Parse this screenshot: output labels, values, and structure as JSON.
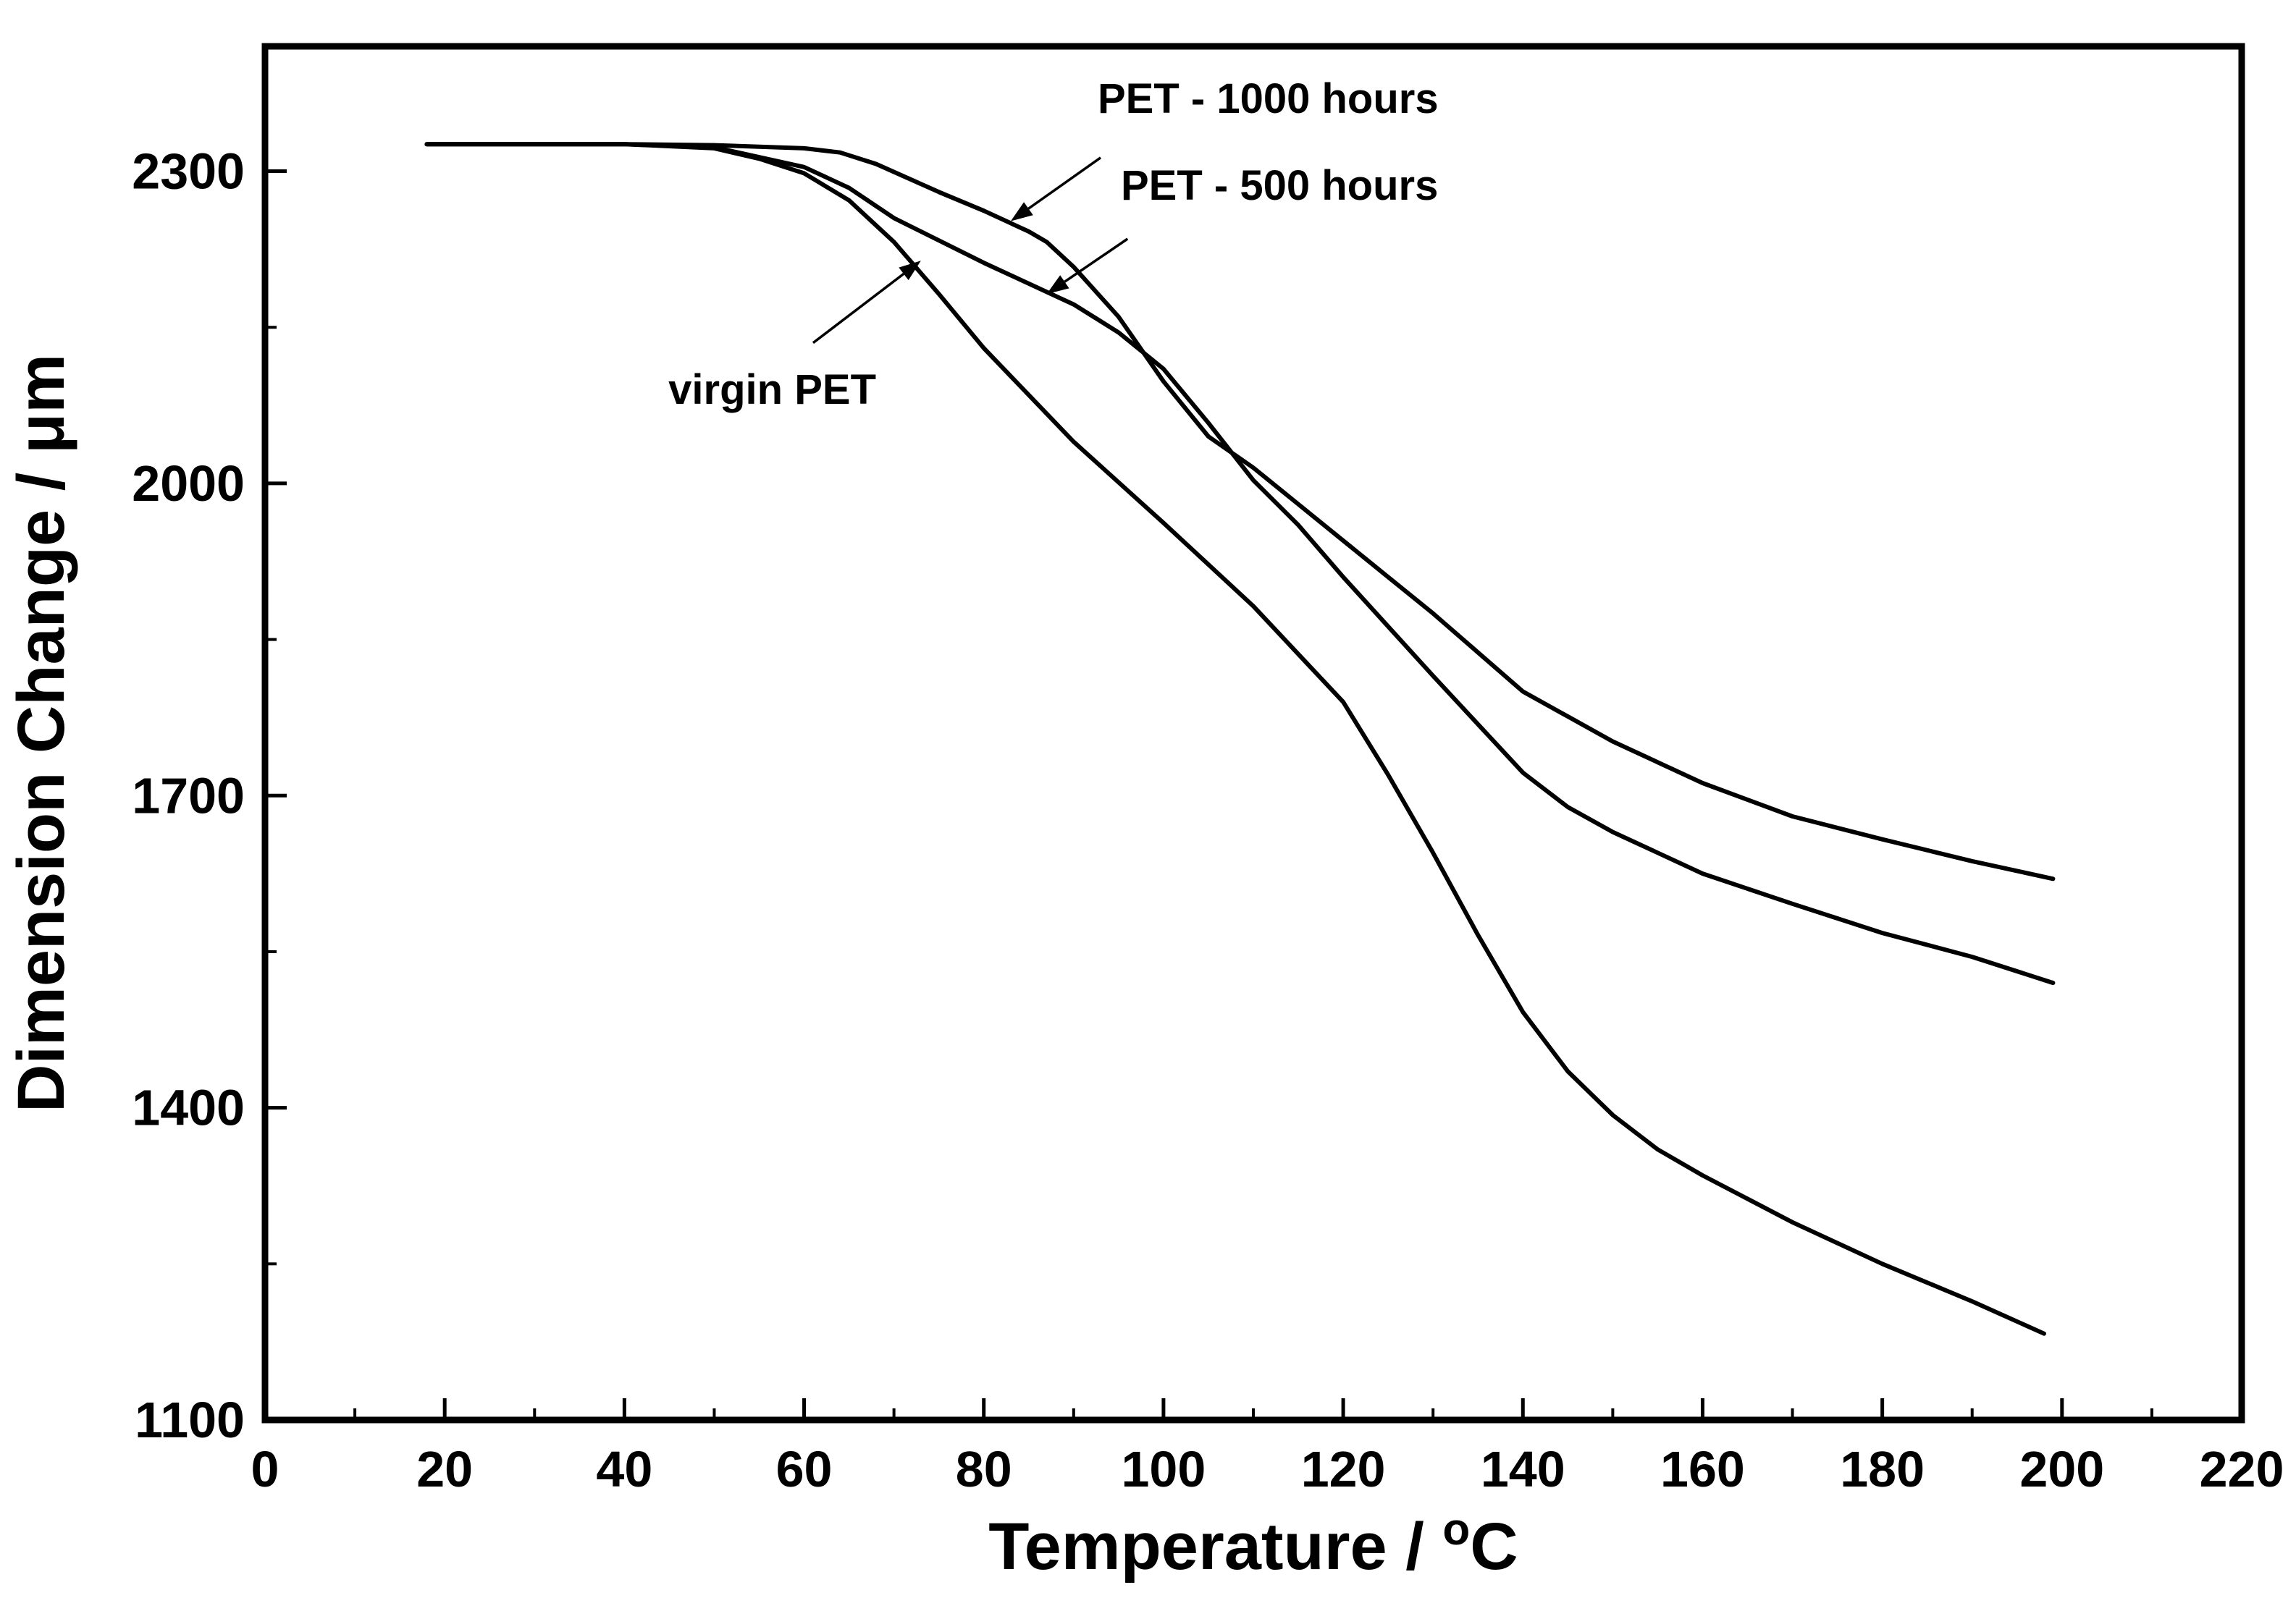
{
  "chart_data": {
    "type": "line",
    "title": "",
    "xlabel": "Temperature / ",
    "xlabel_sup": "o",
    "xlabel_unit": "C",
    "ylabel": "Dimension Change / μm",
    "xlim": [
      0,
      220
    ],
    "ylim": [
      1100,
      2420
    ],
    "x_ticks": [
      0,
      20,
      40,
      60,
      80,
      100,
      120,
      140,
      160,
      180,
      200,
      220
    ],
    "y_ticks": [
      1100,
      1400,
      1700,
      2000,
      2300
    ],
    "grid": false,
    "series": [
      {
        "name": "virgin PET",
        "x": [
          18,
          40,
          50,
          55,
          60,
          65,
          70,
          75,
          80,
          90,
          100,
          110,
          120,
          125,
          130,
          135,
          140,
          145,
          150,
          155,
          160,
          170,
          180,
          190,
          198
        ],
        "y": [
          2326,
          2326,
          2322,
          2312,
          2298,
          2272,
          2232,
          2182,
          2130,
          2040,
          1962,
          1882,
          1790,
          1720,
          1645,
          1566,
          1492,
          1435,
          1393,
          1360,
          1335,
          1290,
          1250,
          1214,
          1183
        ]
      },
      {
        "name": "PET - 500 hours",
        "x": [
          18,
          40,
          50,
          60,
          65,
          70,
          80,
          90,
          95,
          100,
          105,
          110,
          115,
          120,
          130,
          140,
          145,
          150,
          160,
          170,
          180,
          190,
          199
        ],
        "y": [
          2326,
          2326,
          2323,
          2304,
          2284,
          2255,
          2212,
          2172,
          2145,
          2110,
          2058,
          2003,
          1960,
          1910,
          1815,
          1722,
          1689,
          1665,
          1625,
          1596,
          1568,
          1545,
          1520
        ]
      },
      {
        "name": "PET - 1000 hours",
        "x": [
          18,
          40,
          50,
          60,
          64,
          68,
          75,
          80,
          85,
          87,
          90,
          95,
          100,
          105,
          110,
          120,
          130,
          140,
          150,
          160,
          170,
          180,
          190,
          199
        ],
        "y": [
          2326,
          2326,
          2325,
          2322,
          2318,
          2307,
          2280,
          2262,
          2242,
          2232,
          2208,
          2160,
          2098,
          2045,
          2015,
          1945,
          1875,
          1800,
          1752,
          1712,
          1680,
          1658,
          1637,
          1620
        ]
      }
    ],
    "annotations": [
      {
        "text": "PET - 1000 hours",
        "target_x": 83,
        "target_y": 2252,
        "label_x": 93,
        "label_y": 2313
      },
      {
        "text": "PET - 500 hours",
        "target_x": 87,
        "target_y": 2182,
        "label_x": 96,
        "label_y": 2235
      },
      {
        "text": "virgin PET",
        "target_x": 73,
        "target_y": 2214,
        "label_x": 61,
        "label_y": 2135
      }
    ]
  }
}
